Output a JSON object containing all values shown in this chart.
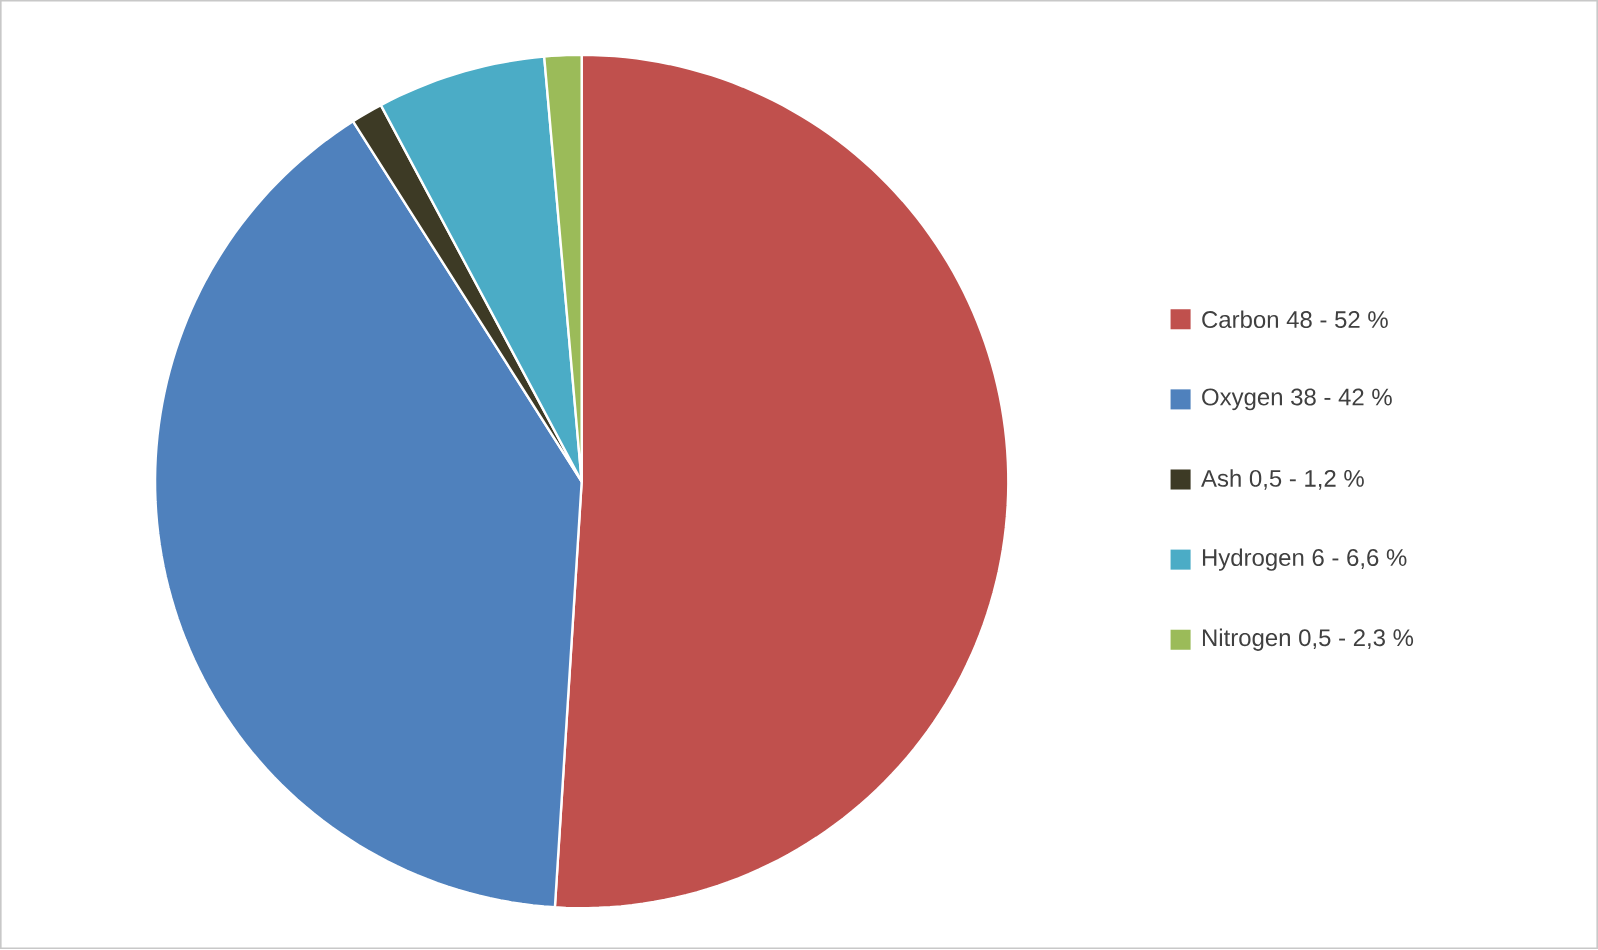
{
  "chart_data": {
    "type": "pie",
    "categories": [
      "Carbon 48 - 52 %",
      "Oxygen 38 - 42 %",
      "Ash 0,5 - 1,2 %",
      "Hydrogen 6 - 6,6 %",
      "Nitrogen 0,5 - 2,3 %"
    ],
    "values": [
      51,
      40,
      1.2,
      6.4,
      1.4
    ],
    "colors": [
      "#c0504d",
      "#4f81bd",
      "#3d3a25",
      "#4bacc6",
      "#9bbb59"
    ],
    "legend": "right"
  }
}
